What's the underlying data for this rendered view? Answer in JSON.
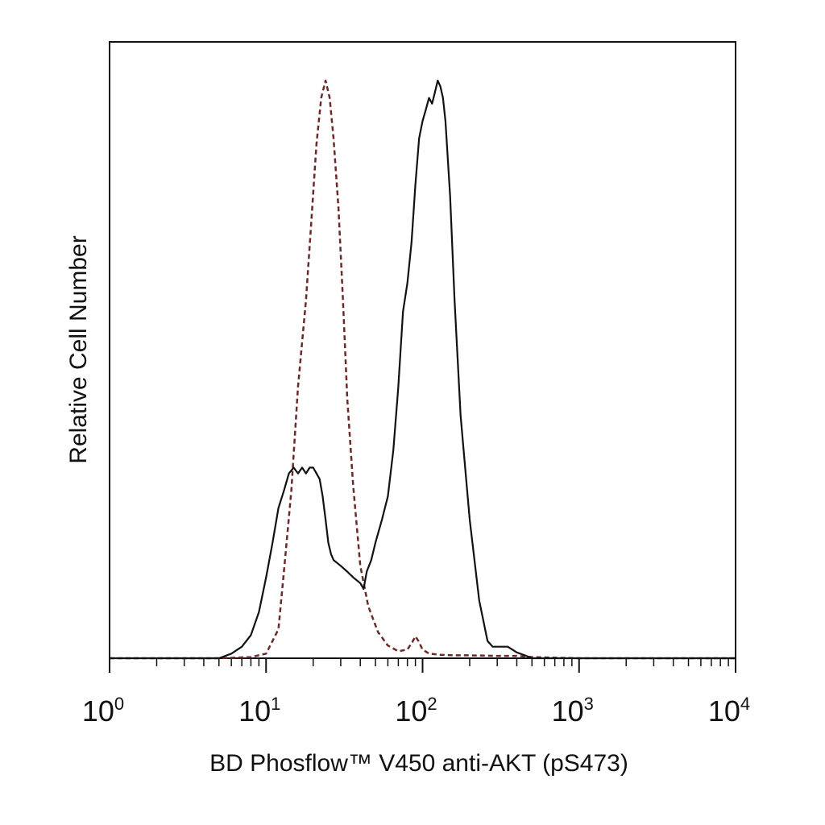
{
  "chart_data": {
    "type": "line",
    "title": "",
    "xlabel": "BD Phosflow™ V450 anti-AKT (pS473)",
    "ylabel": "Relative Cell Number",
    "xscale": "log",
    "xlim": [
      1,
      10000
    ],
    "ylim": [
      0,
      100
    ],
    "grid": false,
    "legend": "none",
    "x_ticks": [
      {
        "value": 1,
        "base": "10",
        "exp": "0"
      },
      {
        "value": 10,
        "base": "10",
        "exp": "1"
      },
      {
        "value": 100,
        "base": "10",
        "exp": "2"
      },
      {
        "value": 1000,
        "base": "10",
        "exp": "3"
      },
      {
        "value": 10000,
        "base": "10",
        "exp": "4"
      }
    ],
    "series": [
      {
        "style": "dashed",
        "color": "#6b2a2a",
        "x": [
          1,
          5,
          8,
          10,
          12,
          13,
          14.5,
          16,
          18,
          19.5,
          21,
          22.5,
          24,
          25.5,
          27,
          29,
          31,
          33,
          36,
          40,
          45,
          52,
          60,
          70,
          80,
          86,
          90,
          94,
          100,
          110,
          130,
          160,
          200,
          300,
          400,
          500,
          1000,
          10000
        ],
        "y": [
          0,
          0,
          0.2,
          0.8,
          5,
          15,
          29,
          47,
          62,
          76,
          89,
          97,
          100,
          97,
          90,
          78,
          62,
          45,
          30,
          16,
          9,
          4.5,
          2.2,
          1.2,
          1.5,
          2.8,
          3.8,
          3,
          1.5,
          0.8,
          0.6,
          0.5,
          0.5,
          0.4,
          0.4,
          0.2,
          0,
          0
        ]
      },
      {
        "style": "solid",
        "color": "#111111",
        "x": [
          1,
          5,
          6,
          7,
          8,
          9,
          10,
          11,
          12,
          13,
          14,
          15,
          16,
          17,
          18,
          19,
          20,
          21,
          22,
          23,
          24,
          25,
          26,
          27,
          30,
          33,
          36,
          40,
          42,
          44,
          47,
          50,
          55,
          60,
          65,
          70,
          75,
          80,
          85,
          90,
          95,
          100,
          105,
          110,
          115,
          120,
          125,
          130,
          135,
          140,
          150,
          160,
          175,
          200,
          230,
          260,
          280,
          300,
          350,
          400,
          450,
          500,
          1000,
          10000
        ],
        "y": [
          0,
          0,
          0.8,
          2,
          4,
          8,
          14,
          20,
          26,
          29,
          32,
          33,
          32,
          33,
          32,
          33,
          33,
          32,
          31,
          28,
          24,
          20,
          18,
          17,
          16,
          15,
          14,
          13,
          12,
          15,
          17,
          20,
          24,
          28,
          36,
          47,
          60,
          65,
          72,
          82,
          90,
          93,
          95,
          97,
          96,
          98,
          100,
          99,
          97,
          93,
          80,
          62,
          42,
          24,
          10,
          3,
          2,
          2,
          2,
          1,
          0.5,
          0,
          0,
          0
        ]
      }
    ]
  }
}
